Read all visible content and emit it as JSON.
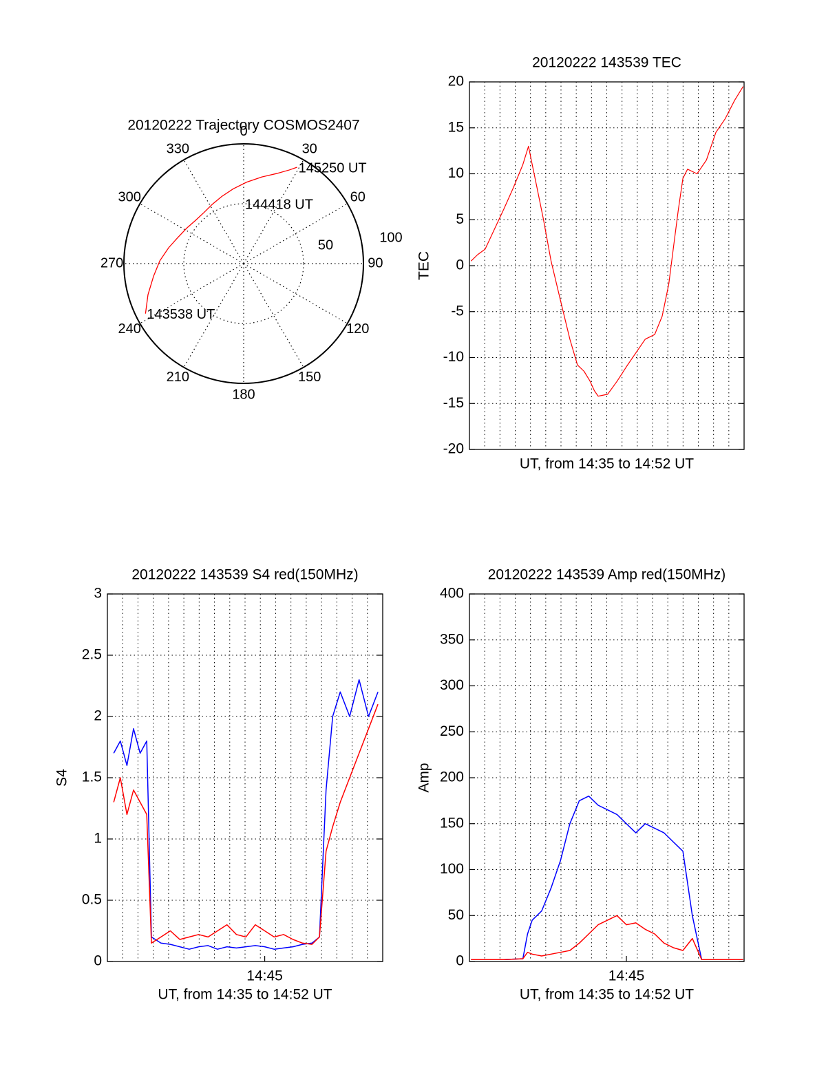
{
  "colors": {
    "red": "#ff0000",
    "blue": "#0000ff",
    "axis": "#000000",
    "grid": "#000000"
  },
  "chart_data": [
    {
      "id": "polar",
      "type": "scatter",
      "coordinate_system": "polar",
      "title": "20120222 Trajectory COSMOS2407",
      "grid": true,
      "azimuth_labels": [
        "0",
        "30",
        "60",
        "90",
        "120",
        "150",
        "180",
        "210",
        "240",
        "270",
        "300",
        "330"
      ],
      "radius_labels": [
        "50",
        "100"
      ],
      "radius_range": [
        0,
        100
      ],
      "series": [
        {
          "color": "#ff0000",
          "azimuth_deg": [
            243,
            252,
            262,
            272,
            282,
            292,
            302,
            312,
            322,
            332,
            342,
            352,
            2,
            12,
            20,
            26,
            29
          ],
          "radius": [
            92,
            84,
            76,
            70,
            64,
            59,
            56,
            54,
            54,
            56,
            59,
            63,
            68,
            74,
            80,
            87,
            92
          ]
        }
      ],
      "annotations": [
        {
          "text": "143538 UT",
          "azimuth_deg": 243,
          "radius": 92
        },
        {
          "text": "144418 UT",
          "azimuth_deg": 0,
          "radius": 50
        },
        {
          "text": "145250 UT",
          "azimuth_deg": 29,
          "radius": 92
        }
      ]
    },
    {
      "id": "tec",
      "type": "line",
      "title": "20120222 143539 TEC",
      "xlabel": "UT, from 14:35 to 14:52 UT",
      "ylabel": "TEC",
      "xlim": [
        14.5833,
        14.875
      ],
      "ylim": [
        -20,
        20
      ],
      "yticks": [
        "20",
        "15",
        "10",
        "5",
        "0",
        "-5",
        "-10",
        "-15",
        "-20"
      ],
      "grid": true,
      "series": [
        {
          "color": "#ff0000",
          "x": [
            14.585,
            14.592,
            14.6,
            14.61,
            14.62,
            14.63,
            14.64,
            14.646,
            14.65,
            14.655,
            14.662,
            14.67,
            14.68,
            14.69,
            14.698,
            14.705,
            14.711,
            14.716,
            14.72,
            14.73,
            14.74,
            14.75,
            14.76,
            14.77,
            14.78,
            14.788,
            14.795,
            14.8,
            14.805,
            14.81,
            14.815,
            14.825,
            14.835,
            14.845,
            14.855,
            14.865,
            14.874
          ],
          "y": [
            0.5,
            1.2,
            1.8,
            4.0,
            6.2,
            8.5,
            11.0,
            13.0,
            11.0,
            8.5,
            5.0,
            0.5,
            -3.8,
            -8.0,
            -10.8,
            -11.5,
            -12.5,
            -13.6,
            -14.2,
            -14.0,
            -12.6,
            -11.0,
            -9.5,
            -8.0,
            -7.5,
            -5.5,
            -2.0,
            2.0,
            6.0,
            9.5,
            10.5,
            10.0,
            11.5,
            14.5,
            16.0,
            18.0,
            19.5
          ]
        }
      ]
    },
    {
      "id": "s4",
      "type": "line",
      "title": "20120222 143539 S4 red(150MHz)",
      "xlabel": "UT, from 14:35 to 14:52 UT",
      "ylabel": "S4",
      "xlim": [
        14.5833,
        14.875
      ],
      "ylim": [
        0,
        3
      ],
      "yticks": [
        "3",
        "2.5",
        "2",
        "1.5",
        "1",
        "0.5",
        "0"
      ],
      "xticks": [
        {
          "value": 14.75,
          "label": "14:45"
        }
      ],
      "grid": true,
      "series": [
        {
          "color": "#0000ff",
          "x": [
            14.59,
            14.597,
            14.604,
            14.611,
            14.618,
            14.625,
            14.63,
            14.64,
            14.65,
            14.66,
            14.67,
            14.68,
            14.69,
            14.7,
            14.71,
            14.72,
            14.73,
            14.74,
            14.75,
            14.76,
            14.77,
            14.78,
            14.79,
            14.8,
            14.808,
            14.815,
            14.822,
            14.83,
            14.84,
            14.85,
            14.86,
            14.87
          ],
          "y": [
            1.7,
            1.8,
            1.6,
            1.9,
            1.7,
            1.8,
            0.2,
            0.15,
            0.14,
            0.12,
            0.1,
            0.12,
            0.13,
            0.1,
            0.12,
            0.11,
            0.12,
            0.13,
            0.12,
            0.1,
            0.11,
            0.12,
            0.14,
            0.15,
            0.2,
            1.4,
            2.0,
            2.2,
            2.0,
            2.3,
            2.0,
            2.2
          ]
        },
        {
          "color": "#ff0000",
          "x": [
            14.59,
            14.597,
            14.604,
            14.611,
            14.618,
            14.625,
            14.63,
            14.64,
            14.65,
            14.66,
            14.67,
            14.68,
            14.69,
            14.7,
            14.71,
            14.72,
            14.73,
            14.74,
            14.75,
            14.76,
            14.77,
            14.78,
            14.79,
            14.8,
            14.808,
            14.815,
            14.822,
            14.83,
            14.84,
            14.85,
            14.86,
            14.87
          ],
          "y": [
            1.3,
            1.5,
            1.2,
            1.4,
            1.3,
            1.2,
            0.15,
            0.2,
            0.25,
            0.18,
            0.2,
            0.22,
            0.2,
            0.25,
            0.3,
            0.22,
            0.2,
            0.3,
            0.25,
            0.2,
            0.22,
            0.18,
            0.15,
            0.14,
            0.2,
            0.9,
            1.1,
            1.3,
            1.5,
            1.7,
            1.9,
            2.1
          ]
        }
      ]
    },
    {
      "id": "amp",
      "type": "line",
      "title": "20120222 143539 Amp red(150MHz)",
      "xlabel": "UT, from 14:35 to 14:52 UT",
      "ylabel": "Amp",
      "xlim": [
        14.5833,
        14.875
      ],
      "ylim": [
        0,
        400
      ],
      "yticks": [
        "400",
        "350",
        "300",
        "250",
        "200",
        "150",
        "100",
        "50",
        "0"
      ],
      "xticks": [
        {
          "value": 14.75,
          "label": "14:45"
        }
      ],
      "grid": true,
      "series": [
        {
          "color": "#0000ff",
          "x": [
            14.585,
            14.6,
            14.62,
            14.64,
            14.645,
            14.65,
            14.66,
            14.67,
            14.68,
            14.69,
            14.7,
            14.71,
            14.72,
            14.73,
            14.74,
            14.75,
            14.76,
            14.77,
            14.78,
            14.79,
            14.8,
            14.81,
            14.82,
            14.83,
            14.84,
            14.85,
            14.86,
            14.87,
            14.874
          ],
          "y": [
            2,
            2,
            2,
            3,
            30,
            45,
            55,
            80,
            110,
            150,
            175,
            180,
            170,
            165,
            160,
            150,
            140,
            150,
            145,
            140,
            130,
            120,
            50,
            2,
            2,
            2,
            2,
            2,
            2
          ]
        },
        {
          "color": "#ff0000",
          "x": [
            14.585,
            14.6,
            14.62,
            14.64,
            14.645,
            14.65,
            14.66,
            14.67,
            14.68,
            14.69,
            14.7,
            14.71,
            14.72,
            14.73,
            14.74,
            14.75,
            14.76,
            14.77,
            14.78,
            14.79,
            14.8,
            14.81,
            14.82,
            14.83,
            14.84,
            14.85,
            14.86,
            14.87,
            14.874
          ],
          "y": [
            2,
            2,
            2,
            3,
            10,
            8,
            6,
            8,
            10,
            12,
            20,
            30,
            40,
            45,
            50,
            40,
            42,
            35,
            30,
            20,
            15,
            12,
            25,
            2,
            2,
            2,
            2,
            2,
            2
          ]
        }
      ]
    }
  ]
}
